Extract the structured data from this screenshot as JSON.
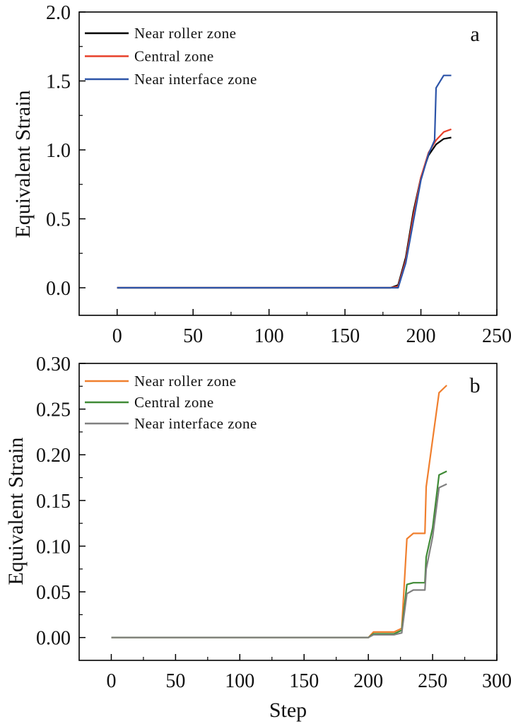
{
  "chart_data": [
    {
      "type": "line",
      "panel_label": "a",
      "xlabel": "",
      "ylabel": "Equivalent Strain",
      "xlim": [
        -25,
        250
      ],
      "ylim": [
        -0.2,
        2.0
      ],
      "xticks": [
        "0",
        "50",
        "100",
        "150",
        "200",
        "250"
      ],
      "yticks": [
        "0.0",
        "0.5",
        "1.0",
        "1.5",
        "2.0"
      ],
      "legend_position": "top-left",
      "grid": false,
      "series": [
        {
          "name": "Near roller zone",
          "color": "#000000",
          "x": [
            0,
            180,
            185,
            190,
            195,
            200,
            205,
            210,
            215,
            220
          ],
          "y": [
            0.0,
            0.0,
            0.02,
            0.22,
            0.55,
            0.8,
            0.96,
            1.04,
            1.08,
            1.09
          ]
        },
        {
          "name": "Central zone",
          "color": "#e8402a",
          "x": [
            0,
            180,
            185,
            190,
            195,
            200,
            205,
            210,
            215,
            220
          ],
          "y": [
            0.0,
            0.0,
            0.01,
            0.2,
            0.52,
            0.8,
            0.98,
            1.07,
            1.13,
            1.15
          ]
        },
        {
          "name": "Near interface zone",
          "color": "#2c54a8",
          "x": [
            0,
            185,
            190,
            195,
            200,
            205,
            209,
            210,
            215,
            220
          ],
          "y": [
            0.0,
            0.0,
            0.18,
            0.48,
            0.78,
            0.97,
            1.07,
            1.45,
            1.54,
            1.54
          ]
        }
      ]
    },
    {
      "type": "line",
      "panel_label": "b",
      "xlabel": "Step",
      "ylabel": "Equivalent Strain",
      "xlim": [
        -25,
        300
      ],
      "ylim": [
        -0.025,
        0.3
      ],
      "xticks": [
        "0",
        "50",
        "100",
        "150",
        "200",
        "250",
        "300"
      ],
      "yticks": [
        "0.00",
        "0.05",
        "0.10",
        "0.15",
        "0.20",
        "0.25",
        "0.30"
      ],
      "legend_position": "top-left",
      "grid": false,
      "series": [
        {
          "name": "Near roller zone",
          "color": "#f07f2e",
          "x": [
            0,
            200,
            204,
            220,
            226,
            230,
            235,
            244,
            245,
            255,
            261
          ],
          "y": [
            0.0,
            0.0,
            0.006,
            0.006,
            0.01,
            0.108,
            0.114,
            0.114,
            0.165,
            0.268,
            0.276
          ]
        },
        {
          "name": "Central zone",
          "color": "#3f8a35",
          "x": [
            0,
            200,
            204,
            220,
            226,
            230,
            235,
            244,
            245,
            250,
            255,
            261
          ],
          "y": [
            0.0,
            0.0,
            0.004,
            0.004,
            0.008,
            0.058,
            0.06,
            0.06,
            0.088,
            0.12,
            0.178,
            0.182
          ]
        },
        {
          "name": "Near interface zone",
          "color": "#808080",
          "x": [
            0,
            200,
            204,
            220,
            226,
            230,
            235,
            244,
            245,
            250,
            255,
            261
          ],
          "y": [
            0.0,
            0.0,
            0.003,
            0.003,
            0.005,
            0.048,
            0.052,
            0.052,
            0.075,
            0.11,
            0.164,
            0.168
          ]
        }
      ]
    }
  ]
}
